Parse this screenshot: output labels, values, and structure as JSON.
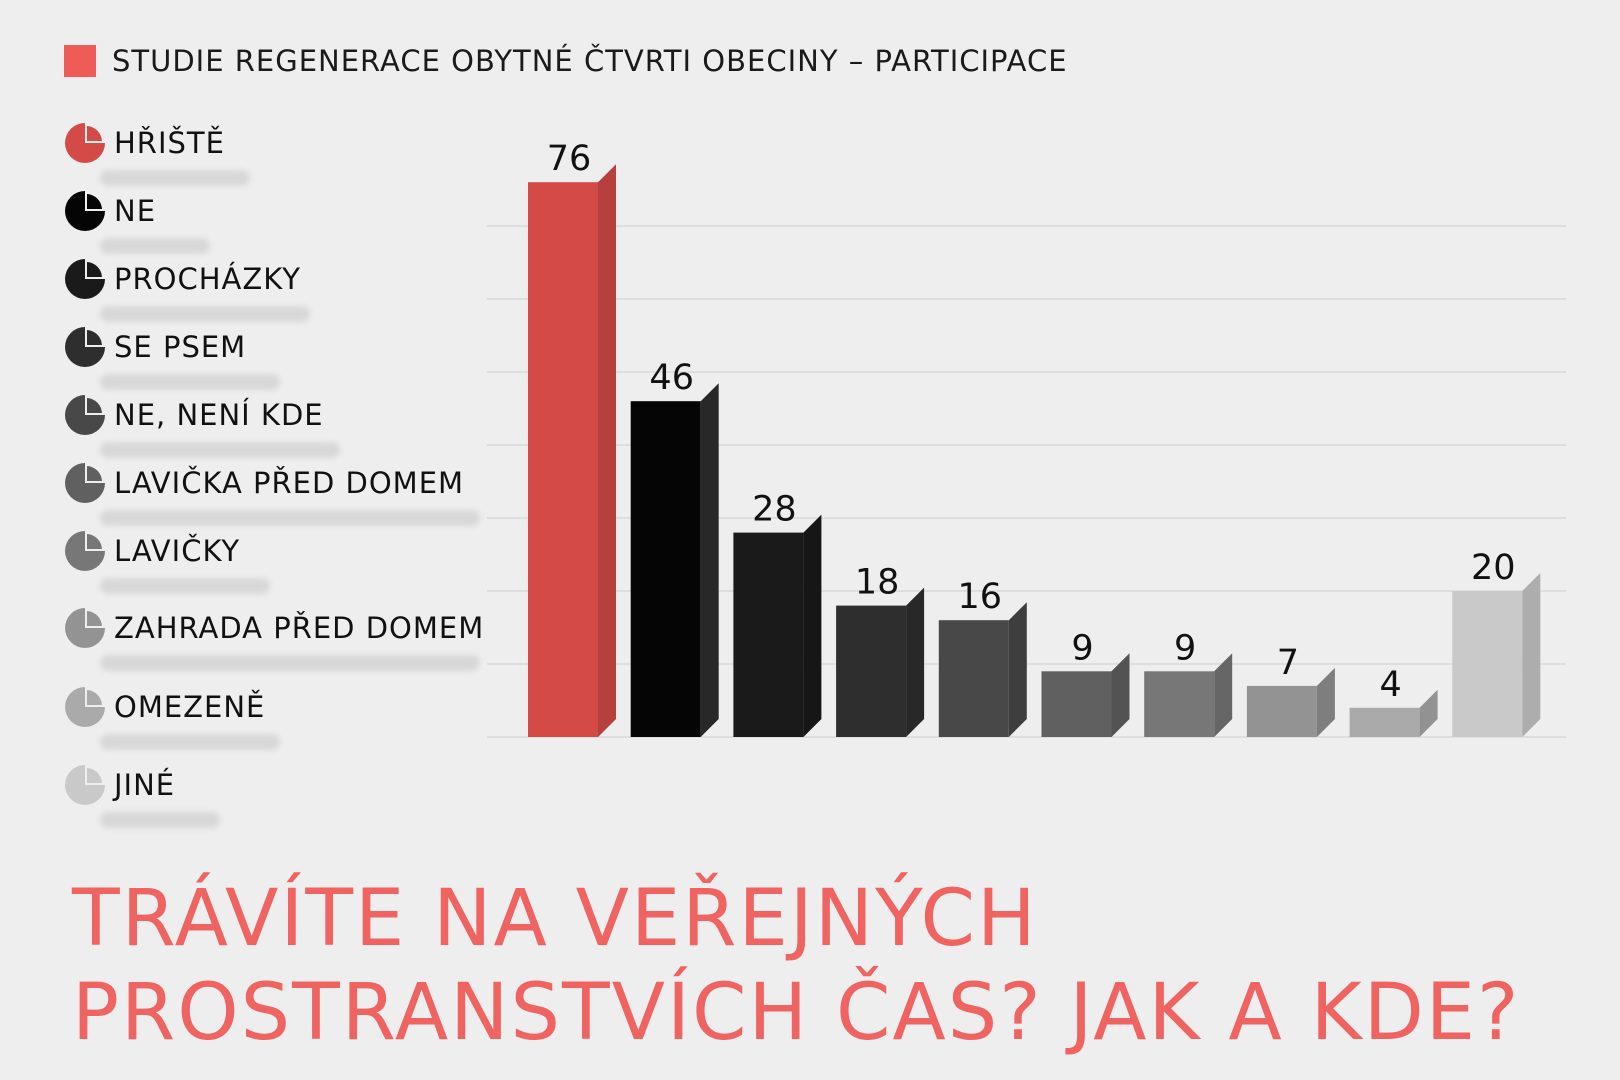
{
  "header": {
    "title": "STUDIE REGENERACE OBYTNÉ ČTVRTI OBECINY – PARTICIPACE",
    "accent_color": "#ef5b57"
  },
  "legend": {
    "items": [
      {
        "label": "HŘIŠTĚ",
        "icon": "pie-slice-icon",
        "color": "#d44a47"
      },
      {
        "label": "NE",
        "icon": "pie-slice-icon",
        "color": "#050505"
      },
      {
        "label": "PROCHÁZKY",
        "icon": "pie-slice-icon",
        "color": "#1a1a1a"
      },
      {
        "label": "SE PSEM",
        "icon": "pie-slice-icon",
        "color": "#2e2e2e"
      },
      {
        "label": "NE, NENÍ KDE",
        "icon": "pie-slice-icon",
        "color": "#484848"
      },
      {
        "label": "LAVIČKA PŘED DOMEM",
        "icon": "pie-slice-icon",
        "color": "#606060"
      },
      {
        "label": "LAVIČKY",
        "icon": "pie-slice-icon",
        "color": "#777777"
      },
      {
        "label": "ZAHRADA PŘED DOMEM",
        "icon": "pie-slice-icon",
        "color": "#939393"
      },
      {
        "label": "OMEZENĚ",
        "icon": "pie-slice-icon",
        "color": "#aaaaaa"
      },
      {
        "label": "JINÉ",
        "icon": "pie-slice-icon",
        "color": "#c9c9c9"
      }
    ]
  },
  "footer": {
    "line1": "TRÁVÍTE NA VEŘEJNÝCH",
    "line2": "PROSTRANSTVÍCH ČAS? JAK A KDE?",
    "color": "#ef6360"
  },
  "chart_data": {
    "type": "bar",
    "categories": [
      "HŘIŠTĚ",
      "NE",
      "PROCHÁZKY",
      "SE PSEM",
      "NE, NENÍ KDE",
      "LAVIČKA PŘED DOMEM",
      "LAVIČKY",
      "ZAHRADA PŘED DOMEM",
      "OMEZENĚ",
      "JINÉ"
    ],
    "values": [
      76,
      46,
      28,
      18,
      16,
      9,
      9,
      7,
      4,
      20
    ],
    "colors": [
      "#d44a47",
      "#050505",
      "#1a1a1a",
      "#2e2e2e",
      "#484848",
      "#606060",
      "#777777",
      "#939393",
      "#aaaaaa",
      "#c9c9c9"
    ],
    "title": "",
    "xlabel": "",
    "ylabel": "",
    "ylim": [
      0,
      80
    ],
    "grid": true,
    "style": "3d-extruded bars, value labels above"
  }
}
